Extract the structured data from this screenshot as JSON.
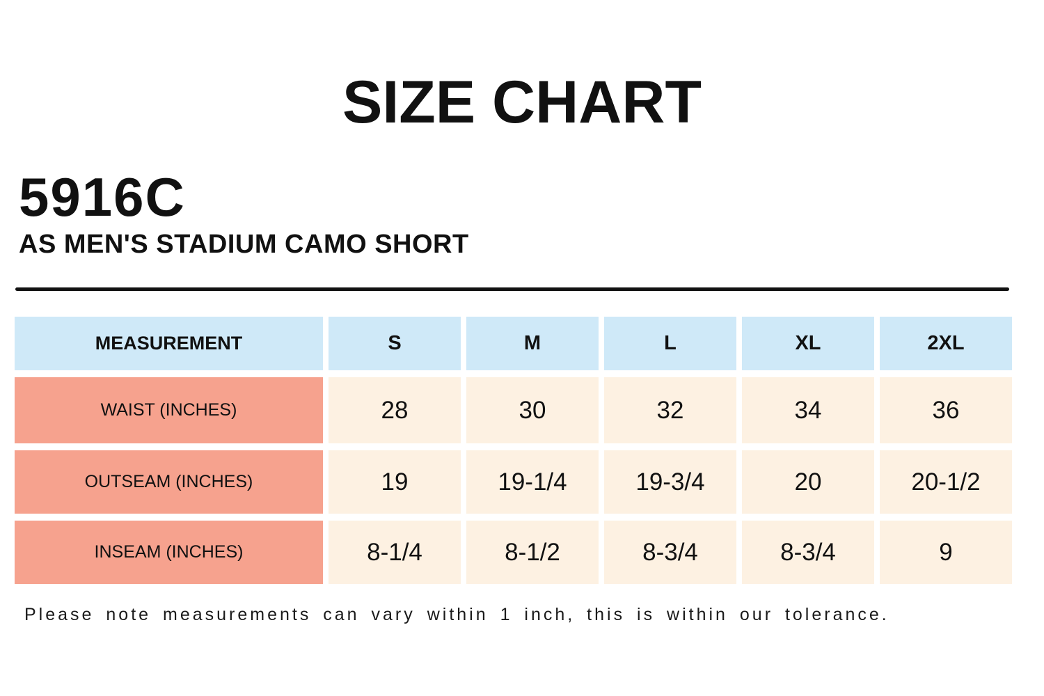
{
  "page": {
    "title": "SIZE CHART",
    "product_code": "5916C",
    "product_name": "AS MEN'S STADIUM CAMO SHORT",
    "footnote": "Please note measurements can vary within 1 inch, this is within our tolerance."
  },
  "colors": {
    "header_bg": "#cfe9f8",
    "label_bg": "#f6a28e",
    "cell_bg": "#fdf1e2",
    "rule_color": "#111111",
    "text_color": "#111111"
  },
  "size_table": {
    "columns": [
      "MEASUREMENT",
      "S",
      "M",
      "L",
      "XL",
      "2XL"
    ],
    "rows": [
      {
        "label": "WAIST (INCHES)",
        "values": [
          "28",
          "30",
          "32",
          "34",
          "36"
        ]
      },
      {
        "label": "OUTSEAM (INCHES)",
        "values": [
          "19",
          "19-1/4",
          "19-3/4",
          "20",
          "20-1/2"
        ]
      },
      {
        "label": "INSEAM (INCHES)",
        "values": [
          "8-1/4",
          "8-1/2",
          "8-3/4",
          "8-3/4",
          "9"
        ]
      }
    ]
  }
}
